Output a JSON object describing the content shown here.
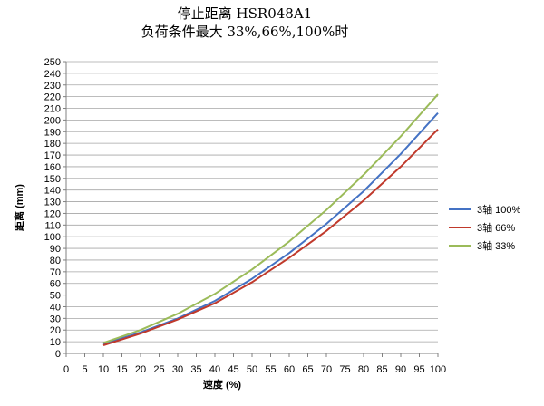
{
  "chart_data": {
    "type": "line",
    "title": "停止距离 HSR048A1",
    "subtitle": "负荷条件最大 33%,66%,100%时",
    "xlabel": "速度 (%)",
    "ylabel": "距离 (mm)",
    "xlim": [
      0,
      100
    ],
    "ylim": [
      0,
      250
    ],
    "x_ticks": [
      0,
      5,
      10,
      15,
      20,
      25,
      30,
      35,
      40,
      45,
      50,
      55,
      60,
      65,
      70,
      75,
      80,
      85,
      90,
      95,
      100
    ],
    "y_ticks": [
      0,
      10,
      20,
      30,
      40,
      50,
      60,
      70,
      80,
      90,
      100,
      110,
      120,
      130,
      140,
      150,
      160,
      170,
      180,
      190,
      200,
      210,
      220,
      230,
      240,
      250
    ],
    "grid": "horizontal",
    "legend_position": "right",
    "x": [
      10,
      20,
      30,
      40,
      50,
      60,
      70,
      80,
      90,
      100
    ],
    "series": [
      {
        "name": "3轴 100%",
        "color": "#4472C4",
        "values": [
          8,
          18,
          30,
          45,
          64,
          86,
          111,
          139,
          171,
          206
        ]
      },
      {
        "name": "3轴 66%",
        "color": "#C0392B",
        "values": [
          7,
          17,
          29,
          43,
          61,
          82,
          105,
          131,
          160,
          192
        ]
      },
      {
        "name": "3轴 33%",
        "color": "#9BBB59",
        "values": [
          9,
          20,
          34,
          51,
          72,
          96,
          123,
          153,
          186,
          222
        ]
      }
    ]
  }
}
